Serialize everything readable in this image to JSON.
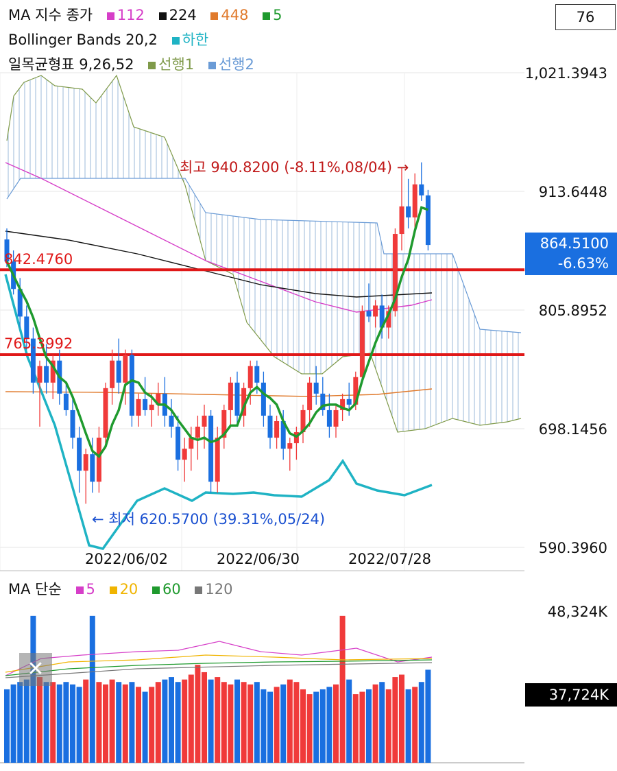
{
  "top_counter": "76",
  "legend": {
    "line1": {
      "title": "MA 지수 종가",
      "items": [
        {
          "label": "112",
          "color": "#d63ec8"
        },
        {
          "label": "224",
          "color": "#111111"
        },
        {
          "label": "448",
          "color": "#e07a2c"
        },
        {
          "label": "5",
          "color": "#1f9a2e"
        }
      ]
    },
    "line2": {
      "title": "Bollinger Bands 20,2",
      "items": [
        {
          "label": "하한",
          "color": "#1fb3c4"
        }
      ]
    },
    "line3": {
      "title": "일목균형표 9,26,52",
      "items": [
        {
          "label": "선행1",
          "color": "#7f9a4a"
        },
        {
          "label": "선행2",
          "color": "#6a9bd6"
        }
      ]
    }
  },
  "price_axis": [
    "1,021.3943",
    "913.6448",
    "805.8952",
    "698.1456",
    "590.3960"
  ],
  "current_price": {
    "value": "864.5100",
    "change": "-6.63%",
    "bg": "#1a6fe0"
  },
  "levels": [
    {
      "label": "842.4760",
      "value": 842.476,
      "color": "#e01818"
    },
    {
      "label": "765.3992",
      "value": 765.3992,
      "color": "#e01818"
    }
  ],
  "annotations": {
    "high": "최고 940.8200 (-8.11%,08/04) →",
    "low": "← 최저 620.5700 (39.31%,05/24)"
  },
  "date_axis": [
    "2022/06/02",
    "2022/06/30",
    "2022/07/28"
  ],
  "volume_legend": {
    "title": "MA 단순",
    "items": [
      {
        "label": "5",
        "color": "#d63ec8"
      },
      {
        "label": "20",
        "color": "#f0b400"
      },
      {
        "label": "60",
        "color": "#1f9a2e"
      },
      {
        "label": "120",
        "color": "#777777"
      }
    ]
  },
  "volume_axis": {
    "top": "48,324K",
    "current": "37,724K"
  },
  "chart_data": {
    "type": "candlestick",
    "ylim": [
      590.396,
      1021.3943
    ],
    "up_color": "#f03a3a",
    "down_color": "#1a6fe0",
    "candles": [
      [
        870,
        880,
        845,
        850
      ],
      [
        850,
        860,
        820,
        825
      ],
      [
        825,
        835,
        790,
        800
      ],
      [
        800,
        810,
        770,
        780
      ],
      [
        780,
        790,
        730,
        740
      ],
      [
        740,
        760,
        700,
        755
      ],
      [
        755,
        775,
        730,
        740
      ],
      [
        740,
        765,
        725,
        760
      ],
      [
        760,
        770,
        720,
        730
      ],
      [
        730,
        740,
        710,
        715
      ],
      [
        715,
        725,
        680,
        690
      ],
      [
        690,
        700,
        640,
        660
      ],
      [
        660,
        680,
        630,
        675
      ],
      [
        675,
        690,
        640,
        650
      ],
      [
        650,
        700,
        640,
        690
      ],
      [
        690,
        740,
        680,
        735
      ],
      [
        735,
        770,
        720,
        760
      ],
      [
        760,
        780,
        730,
        740
      ],
      [
        740,
        770,
        720,
        765
      ],
      [
        765,
        770,
        700,
        710
      ],
      [
        710,
        730,
        700,
        725
      ],
      [
        725,
        745,
        710,
        715
      ],
      [
        715,
        730,
        700,
        720
      ],
      [
        720,
        740,
        710,
        730
      ],
      [
        730,
        745,
        700,
        710
      ],
      [
        710,
        725,
        690,
        700
      ],
      [
        700,
        710,
        660,
        670
      ],
      [
        670,
        690,
        650,
        680
      ],
      [
        680,
        700,
        660,
        690
      ],
      [
        690,
        710,
        670,
        700
      ],
      [
        700,
        720,
        680,
        710
      ],
      [
        710,
        715,
        640,
        650
      ],
      [
        650,
        700,
        640,
        690
      ],
      [
        690,
        720,
        680,
        715
      ],
      [
        715,
        745,
        700,
        740
      ],
      [
        740,
        750,
        700,
        710
      ],
      [
        710,
        740,
        700,
        735
      ],
      [
        735,
        760,
        720,
        755
      ],
      [
        755,
        760,
        730,
        740
      ],
      [
        740,
        750,
        700,
        710
      ],
      [
        710,
        720,
        680,
        690
      ],
      [
        690,
        710,
        680,
        705
      ],
      [
        705,
        715,
        670,
        680
      ],
      [
        680,
        690,
        660,
        685
      ],
      [
        685,
        700,
        670,
        695
      ],
      [
        695,
        720,
        685,
        715
      ],
      [
        715,
        745,
        700,
        740
      ],
      [
        740,
        755,
        720,
        730
      ],
      [
        730,
        745,
        710,
        715
      ],
      [
        715,
        730,
        690,
        700
      ],
      [
        700,
        720,
        690,
        715
      ],
      [
        715,
        730,
        705,
        725
      ],
      [
        725,
        740,
        710,
        720
      ],
      [
        720,
        750,
        715,
        745
      ],
      [
        745,
        810,
        740,
        805
      ],
      [
        805,
        830,
        795,
        800
      ],
      [
        800,
        815,
        790,
        810
      ],
      [
        810,
        820,
        780,
        790
      ],
      [
        790,
        810,
        780,
        805
      ],
      [
        805,
        880,
        800,
        875
      ],
      [
        875,
        935,
        860,
        900
      ],
      [
        900,
        925,
        880,
        890
      ],
      [
        890,
        930,
        880,
        920
      ],
      [
        920,
        940,
        905,
        910
      ],
      [
        910,
        915,
        860,
        865
      ]
    ],
    "volume_ylim": [
      0,
      48324
    ]
  }
}
